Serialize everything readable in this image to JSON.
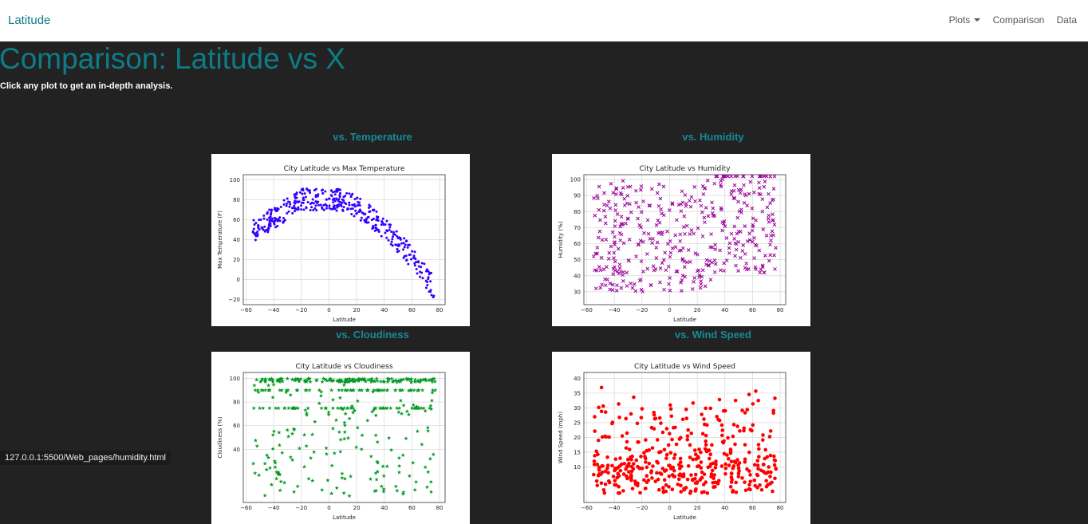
{
  "navbar": {
    "brand": "Latitude",
    "plots_label": "Plots",
    "comparison_label": "Comparison",
    "data_label": "Data"
  },
  "page": {
    "title": "Comparison: Latitude vs X",
    "subtitle": "Click any plot to get an in-depth analysis."
  },
  "plots": [
    {
      "heading": "vs. Temperature",
      "title": "City Latitude vs Max Temperature",
      "xlabel": "Latitude",
      "ylabel": "Max Temperature (F)",
      "color": "#3300ff",
      "marker": "dot",
      "ymin": -25,
      "ymax": 105,
      "yticks": [
        "100",
        "80",
        "60",
        "40",
        "20",
        "0",
        "−20"
      ],
      "ytick_values": [
        100,
        80,
        60,
        40,
        20,
        0,
        -20
      ]
    },
    {
      "heading": "vs. Humidity",
      "title": "City Latitude vs Humidity",
      "xlabel": "Latitude",
      "ylabel": "Humidity (%)",
      "color": "#990099",
      "marker": "x",
      "ymin": 22,
      "ymax": 103,
      "yticks": [
        "100",
        "90",
        "80",
        "70",
        "60",
        "50",
        "40",
        "30"
      ],
      "ytick_values": [
        100,
        90,
        80,
        70,
        60,
        50,
        40,
        30
      ]
    },
    {
      "heading": "vs. Cloudiness",
      "title": "City Latitude vs Cloudiness",
      "xlabel": "Latitude",
      "ylabel": "Cloudiness (%)",
      "color": "#009922",
      "marker": "star",
      "ymin": -5,
      "ymax": 105,
      "yticks": [
        "100",
        "80",
        "60",
        "40"
      ],
      "ytick_values": [
        100,
        80,
        60,
        40
      ]
    },
    {
      "heading": "vs. Wind Speed",
      "title": "City Latitude vs Wind Speed",
      "xlabel": "Latitude",
      "ylabel": "Wind Speed (mph)",
      "color": "#ff0000",
      "marker": "dot",
      "ymin": -2,
      "ymax": 42,
      "yticks": [
        "40",
        "35",
        "30",
        "25",
        "20",
        "15",
        "10"
      ],
      "ytick_values": [
        40,
        35,
        30,
        25,
        20,
        15,
        10
      ]
    }
  ],
  "xaxis": {
    "min": -62,
    "max": 84,
    "ticks": [
      "−60",
      "−40",
      "−20",
      "0",
      "20",
      "40",
      "60",
      "80"
    ],
    "tick_values": [
      -60,
      -40,
      -20,
      0,
      20,
      40,
      60,
      80
    ]
  },
  "status_bar": {
    "url": "127.0.0.1:5500/Web_pages/humidity.html"
  }
}
